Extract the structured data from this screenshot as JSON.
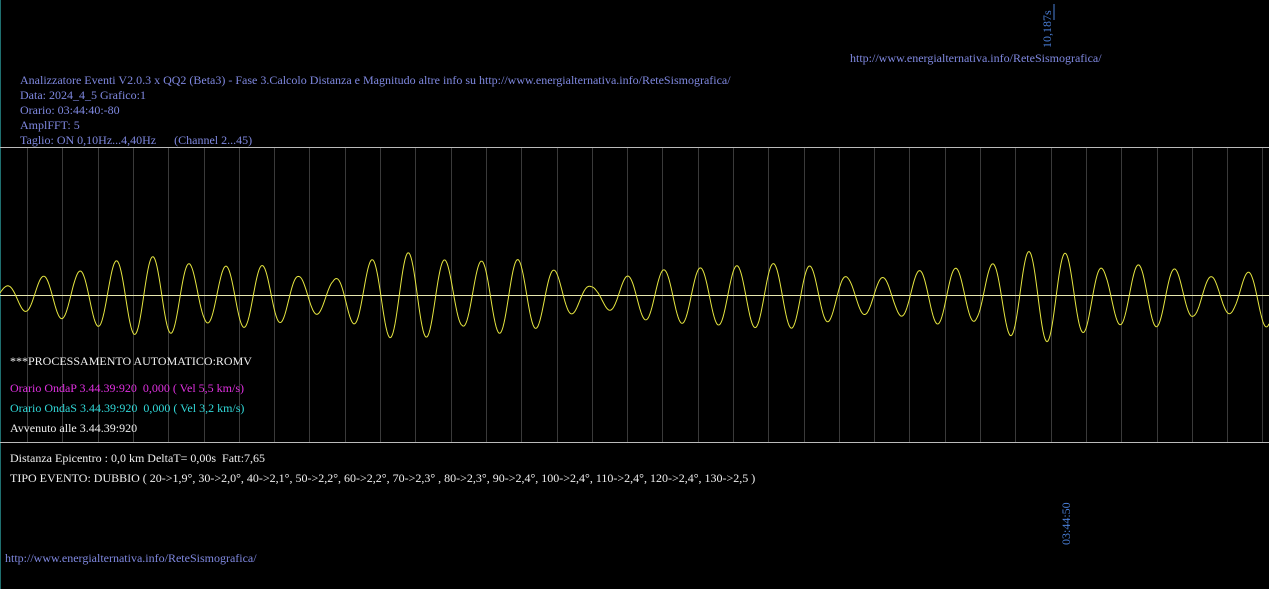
{
  "top_url": "http://www.energialternativa.info/ReteSismografica/",
  "time_marker_top": "10,187s",
  "info": {
    "title": "Analizzatore Eventi V2.0.3 x QQ2 (Beta3) - Fase 3.Calcolo Distanza e Magnitudo altre info su http://www.energialternativa.info/ReteSismografica/",
    "date": "Data: 2024_4_5 Grafico:1",
    "time": "Orario: 03:44:40:-80",
    "ampl": "AmplFFT: 5",
    "filter": "Taglio: ON 0,10Hz...4,40Hz      (Channel 2...45)"
  },
  "processing": {
    "header": "***PROCESSAMENTO AUTOMATICO:ROMV",
    "p_wave": "Orario OndaP 3.44.39:920  0,000 ( Vel 5,5 km/s)",
    "s_wave": "Orario OndaS 3.44.39:920  0,000 ( Vel 3,2 km/s)",
    "occurred": "Avvenuto alle 3.44.39:920",
    "distance": "Distanza Epicentro : 0,0 km DeltaT= 0,00s  Fatt:7,65",
    "event_type": "TIPO EVENTO: DUBBIO ( 20->1,9°, 30->2,0°, 40->2,1°, 50->2,2°, 60->2,2°, 70->2,3° , 80->2,3°, 90->2,4°, 100->2,4°, 110->2,4°, 120->2,4°, 130->2,5 )"
  },
  "time_marker_bottom": "03:44:50",
  "footer_url": "http://www.energialternativa.info/ReteSismografica/"
}
